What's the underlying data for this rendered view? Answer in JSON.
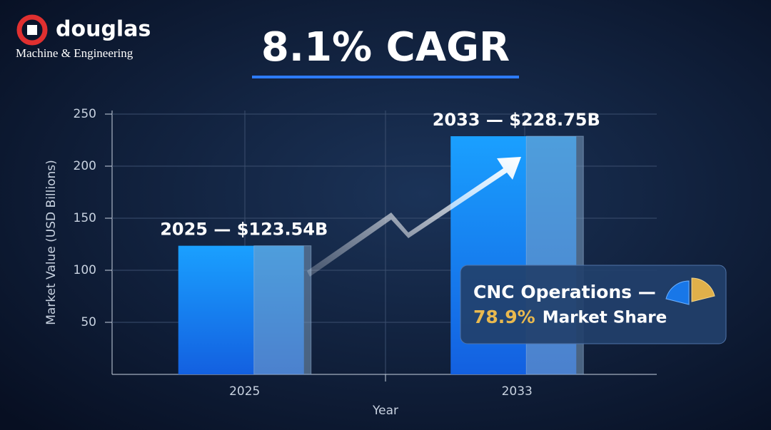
{
  "logo": {
    "name": "douglas",
    "tagline": "Machine & Engineering"
  },
  "chart_data": {
    "type": "bar",
    "title": "8.1% CAGR",
    "categories": [
      "2025",
      "2033"
    ],
    "values": [
      123.54,
      228.75
    ],
    "value_labels": [
      "2025 — $123.54B",
      "2033 — $228.75B"
    ],
    "color": "#1e90f5",
    "xlabel": "Year",
    "ylabel": "Market Value (USD Billions)",
    "ylim": [
      0,
      250
    ],
    "yticks": [
      50,
      100,
      150,
      200,
      250
    ],
    "grid": true
  },
  "callout": {
    "title": "CNC Operations —",
    "value": 78.9,
    "value_label": "78.9%",
    "text": "Market Share"
  }
}
